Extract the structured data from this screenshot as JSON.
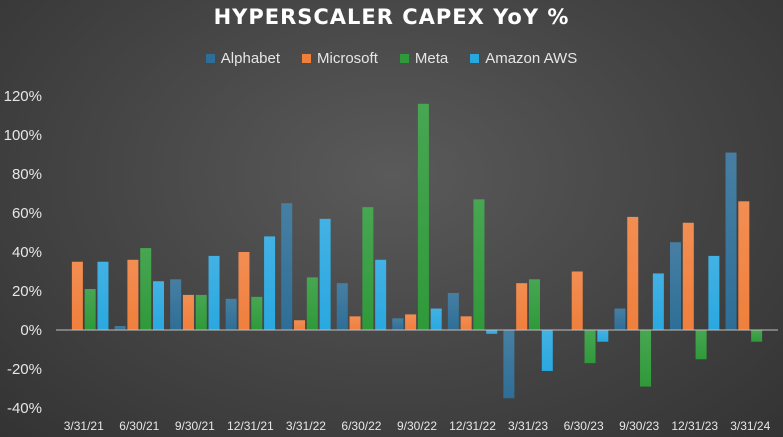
{
  "chart_data": {
    "type": "bar",
    "title": "HYPERSCALER CAPEX YoY %",
    "xlabel": "",
    "ylabel": "",
    "ylim": [
      -0.4,
      1.2
    ],
    "yticks": [
      "120%",
      "100%",
      "80%",
      "60%",
      "40%",
      "20%",
      "0%",
      "-20%",
      "-40%"
    ],
    "ytick_values": [
      1.2,
      1.0,
      0.8,
      0.6,
      0.4,
      0.2,
      0.0,
      -0.2,
      -0.4
    ],
    "legend_position": "top",
    "grid": false,
    "categories": [
      "3/31/21",
      "6/30/21",
      "9/30/21",
      "12/31/21",
      "3/31/22",
      "6/30/22",
      "9/30/22",
      "12/31/22",
      "3/31/23",
      "6/30/23",
      "9/30/23",
      "12/31/23",
      "3/31/24"
    ],
    "series": [
      {
        "name": "Alphabet",
        "color": "#2e6e96",
        "values": [
          0.0,
          0.02,
          0.26,
          0.16,
          0.65,
          0.24,
          0.06,
          0.19,
          -0.35,
          0.0,
          0.11,
          0.45,
          0.91
        ]
      },
      {
        "name": "Microsoft",
        "color": "#f07f3c",
        "values": [
          0.35,
          0.36,
          0.18,
          0.4,
          0.05,
          0.07,
          0.08,
          0.07,
          0.24,
          0.3,
          0.58,
          0.55,
          0.66
        ]
      },
      {
        "name": "Meta",
        "color": "#2f9a3a",
        "values": [
          0.21,
          0.42,
          0.18,
          0.17,
          0.27,
          0.63,
          1.16,
          0.67,
          0.26,
          -0.17,
          -0.29,
          -0.15,
          -0.06
        ]
      },
      {
        "name": "Amazon AWS",
        "color": "#29a8e0",
        "values": [
          0.35,
          0.25,
          0.38,
          0.48,
          0.57,
          0.36,
          0.11,
          -0.02,
          -0.21,
          -0.06,
          0.29,
          0.38,
          null
        ]
      }
    ]
  }
}
